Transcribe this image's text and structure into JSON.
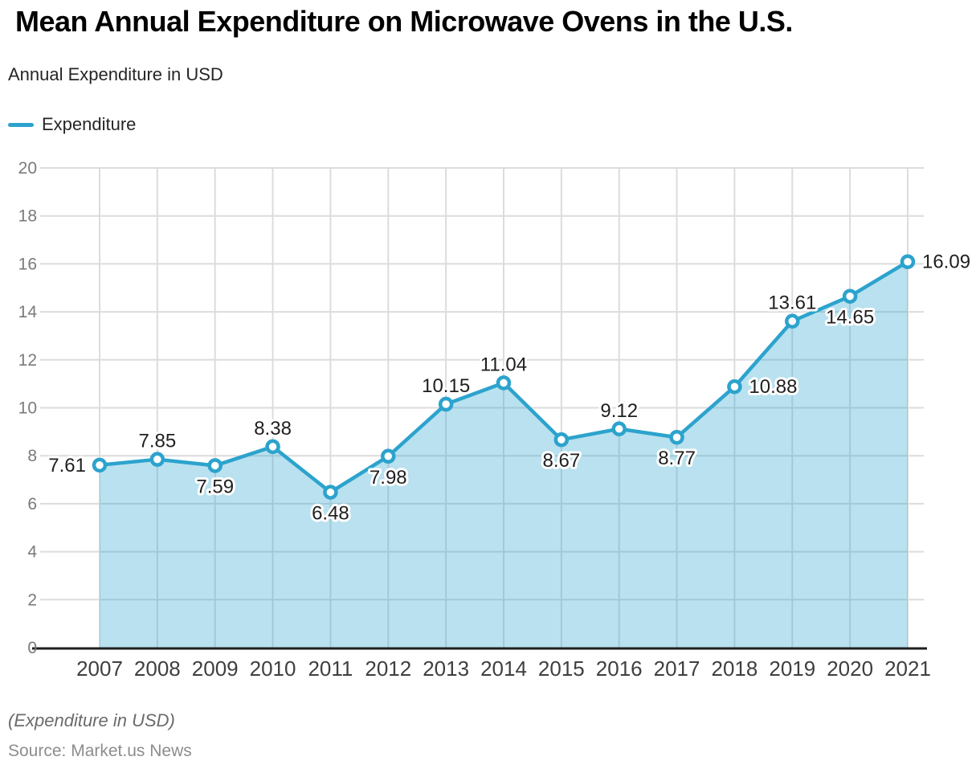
{
  "header": {
    "title": "Mean Annual Expenditure on Microwave Ovens in the U.S.",
    "subtitle": "Annual Expenditure in USD"
  },
  "legend": {
    "label": "Expenditure"
  },
  "footer": {
    "note": "(Expenditure in USD)",
    "source": "Source: Market.us News"
  },
  "colors": {
    "line": "#2CA3CD",
    "area_fill": "rgba(44,163,205,0.33)",
    "marker_fill": "#ffffff",
    "grid": "#DCDCDC",
    "baseline": "#1f1f1f",
    "y_tick_text": "#7a7a7a",
    "x_tick_text": "#3f3f3f",
    "data_label_text": "#1f1f1f"
  },
  "chart_data": {
    "type": "area",
    "title": "Mean Annual Expenditure on Microwave Ovens in the U.S.",
    "subtitle": "Annual Expenditure in USD",
    "xlabel": "",
    "ylabel": "Annual Expenditure in USD",
    "x": [
      "2007",
      "2008",
      "2009",
      "2010",
      "2011",
      "2012",
      "2013",
      "2014",
      "2015",
      "2016",
      "2017",
      "2018",
      "2019",
      "2020",
      "2021"
    ],
    "series": [
      {
        "name": "Expenditure",
        "values": [
          7.61,
          7.85,
          7.59,
          8.38,
          6.48,
          7.98,
          10.15,
          11.04,
          8.67,
          9.12,
          8.77,
          10.88,
          13.61,
          14.65,
          16.09
        ]
      }
    ],
    "ylim": [
      0,
      20
    ],
    "ytick_step": 2,
    "yticks": [
      0,
      2,
      4,
      6,
      8,
      10,
      12,
      14,
      16,
      18,
      20
    ],
    "grid": true,
    "legend_position": "top-left",
    "data_labels_visible": true,
    "label_placements": [
      "left",
      "above",
      "below",
      "above",
      "below",
      "below",
      "above",
      "above",
      "below",
      "above",
      "below",
      "right",
      "above",
      "below",
      "right"
    ]
  }
}
